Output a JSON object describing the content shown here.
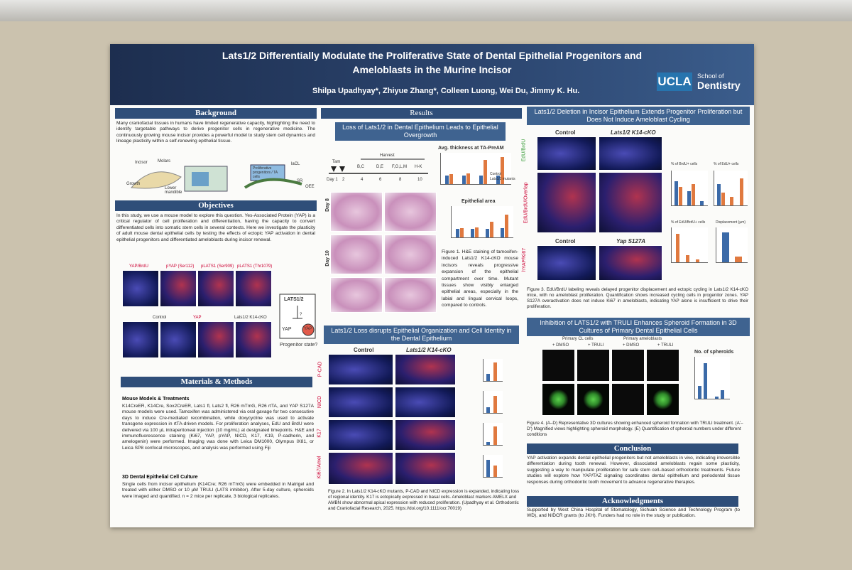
{
  "header": {
    "title_line1": "Lats1/2 Differentially Modulate the Proliferative State of Dental Epithelial Progenitors and",
    "title_line2": "Ameloblasts in the Murine Incisor",
    "authors": "Shilpa Upadhyay*, Zhiyue Zhang*, Colleen Luong, Wei Du, Jimmy K. Hu.",
    "logo": "UCLA",
    "school_of": "School of",
    "school": "Dentistry"
  },
  "background": {
    "heading": "Background",
    "text": "Many craniofacial tissues in humans have limited regenerative capacity, highlighting the need to identify targetable pathways to derive progenitor cells in regenerative medicine. The continuously growing mouse incisor provides a powerful model to study stem cell dynamics and lineage plasticity within a self-renewing epithelial tissue.",
    "diagram_labels": [
      "Incisor",
      "Molars",
      "Growth",
      "Lower mandible",
      "Proliferative progenitors / TA cells",
      "laCL",
      "SR",
      "OEE"
    ]
  },
  "objectives": {
    "heading": "Objectives",
    "text": "In this study, we use a mouse model to explore this question. Yes-Associated Protein (YAP) is a critical regulator of cell proliferation and differentiation, having the capacity to convert differentiated cells into somatic stem cells in several contexts. Here we investigate the plasticity of adult mouse dental epithelial cells by testing the effects of ectopic YAP activation in dental epithelial progenitors and differentiated ameloblasts during incisor renewal.",
    "panel_labels": [
      "YAP/BrdU",
      "pYAP (Ser112)",
      "pLATS1 (Ser909)",
      "pLATS1 (Thr1079)"
    ],
    "row2_labels": [
      "Control",
      "YAP",
      "Lats1/2 K14-cKO"
    ],
    "model": [
      "LATS1/2",
      "?",
      "YAP",
      "YAP",
      "Progenitor state?"
    ]
  },
  "methods": {
    "heading": "Materials & Methods",
    "sub1": "Mouse Models & Treatments",
    "text1": "K14CreER, K14Cre, Sox2CreER, Lats1 fl, Lats2 fl, R26 mTmG, R26 rtTA, and YAP S127A mouse models were used. Tamoxifen was administered via oral gavage for two consecutive days to induce Cre-mediated recombination, while doxycycline was used to activate transgene expression in rtTA-driven models. For proliferation analyses, EdU and BrdU were delivered via 100 µL intraperitoneal injection (10 mg/mL) at designated timepoints. H&E and immunofluorescence staining (Ki67, YAP, pYAP, NICD, K17, K19, P-cadherin, and amelogenin) were performed. Imaging was done with Leica DM1000, Olympus IX81, or Leica SP8 confocal microscopes, and analysis was performed using Fiji",
    "sub2": "3D Dental Epithelial Cell Culture",
    "text2": "Single cells from incisor epithelium (K14Cre; R26 mTmG) were embedded in Matrigel and treated with either DMSO or 10 µM TRULI (LATS inhibitor). After 5-day culture, spheroids were imaged and quantified. n = 2 mice per replicate, 3 biological replicates."
  },
  "results": {
    "heading": "Results",
    "sub1": "Loss of Lats1/2 in Dental Epithelium Leads to Epithelial Overgrowth",
    "timeline": [
      "Tam",
      "Day 1",
      "2",
      "4",
      "6",
      "8",
      "10",
      "Harvest",
      "B,C",
      "D,E",
      "F,G,L,M",
      "H-K"
    ],
    "chart1_title": "Avg. thickness at TA-PreAM",
    "chart2_title": "Epithelial area",
    "legend": [
      "Control",
      "Lats1/2 mutants"
    ],
    "day_labels": [
      "Day 8",
      "Day 10"
    ],
    "fig1_caption": "Figure 1. H&E staining of tamoxifen-induced Lats1/2 K14-cKO mouse incisors reveals progressive expansion of the epithelial compartment over time. Mutant tissues show visibly enlarged epithelial areas, especially in the labial and lingual cervical loops, compared to controls.",
    "sub2": "Lats1/2 Loss disrupts Epithelial Organization and Cell Identity in the Dental Epithelium",
    "col_labels": [
      "Control",
      "Lats1/2 K14-cKO"
    ],
    "row_labels": [
      "P-CAD",
      "NICD",
      "K17",
      "Ki67/Amel"
    ],
    "fig2_caption": "Figure 2. In Lats1/2 K14-cKO mutants, P-CAD and NICD expression is expanded, indicating loss of regional identity. K17 is ectopically expressed in basal cells. Ameloblast markers AMELX and AMBN show abnormal apical expression with reduced proliferation. (Upadhyay et al. Orthodontic and Craniofacial Research, 2025. https://doi.org/10.1111/ocr.70019)"
  },
  "right": {
    "sub3": "Lats1/2 Deletion in Incisor Epithelium Extends Progenitor Proliferation but Does Not Induce Ameloblast Cycling",
    "col_labels": [
      "Control",
      "Lats1/2 K14-cKO",
      "Control",
      "Yap S127A"
    ],
    "row_labels": [
      "EdU/BrdU",
      "EdU/BrdU/Overlap",
      "hYAP/Ki67"
    ],
    "chart_titles": [
      "% of BrdU+ cells",
      "% of EdU+ cells",
      "% of EdU/BrdU+ cells",
      "Displacement (µm)"
    ],
    "fig3_caption": "Figure 3. EdU/BrdU labeling reveals delayed progenitor displacement and ectopic cycling in Lats1/2 K14-cKO mice, with no ameloblast proliferation. Quantification shows increased cycling cells in progenitor zones. YAP S127A overactivation does not induce Ki67 in ameloblasts, indicating YAP alone is insufficient to drive their proliferation.",
    "sub4": "Inhibition of LATS1/2 with TRULI Enhances Spheroid Formation in 3D Cultures of Primary Dental Epithelial Cells",
    "culture_labels": [
      "Primary CL cells",
      "Primary ameloblasts",
      "+ DMSO",
      "+ TRULI",
      "+ DMSO",
      "+ TRULI"
    ],
    "chart4_title": "No. of spheroids",
    "fig4_caption": "Figure 4. (A–D) Representative 3D cultures showing enhanced spheroid formation with TRULI treatment. (A'–D') Magnified views highlighting spheroid morphology. (E) Quantification of spheroid numbers under different conditions",
    "conclusion_heading": "Conclusion",
    "conclusion": "YAP activation expands dental epithelial progenitors but not ameloblasts in vivo, indicating irreversible differentiation during tooth renewal. However, dissociated ameloblasts regain some plasticity, suggesting a way to manipulate proliferation for safe stem cell–based orthodontic treatments. Future studies will explore how YAP/TAZ signaling coordinates dental epithelium and periodontal tissue responses during orthodontic tooth movement to advance regenerative therapies.",
    "ack_heading": "Acknowledgments",
    "ack": "Supported by West China Hospital of Stomatology, Sichuan Science and Technology Program (to WD), and NIDCR grants (to JKH). Funders had no role in the study or publication."
  }
}
